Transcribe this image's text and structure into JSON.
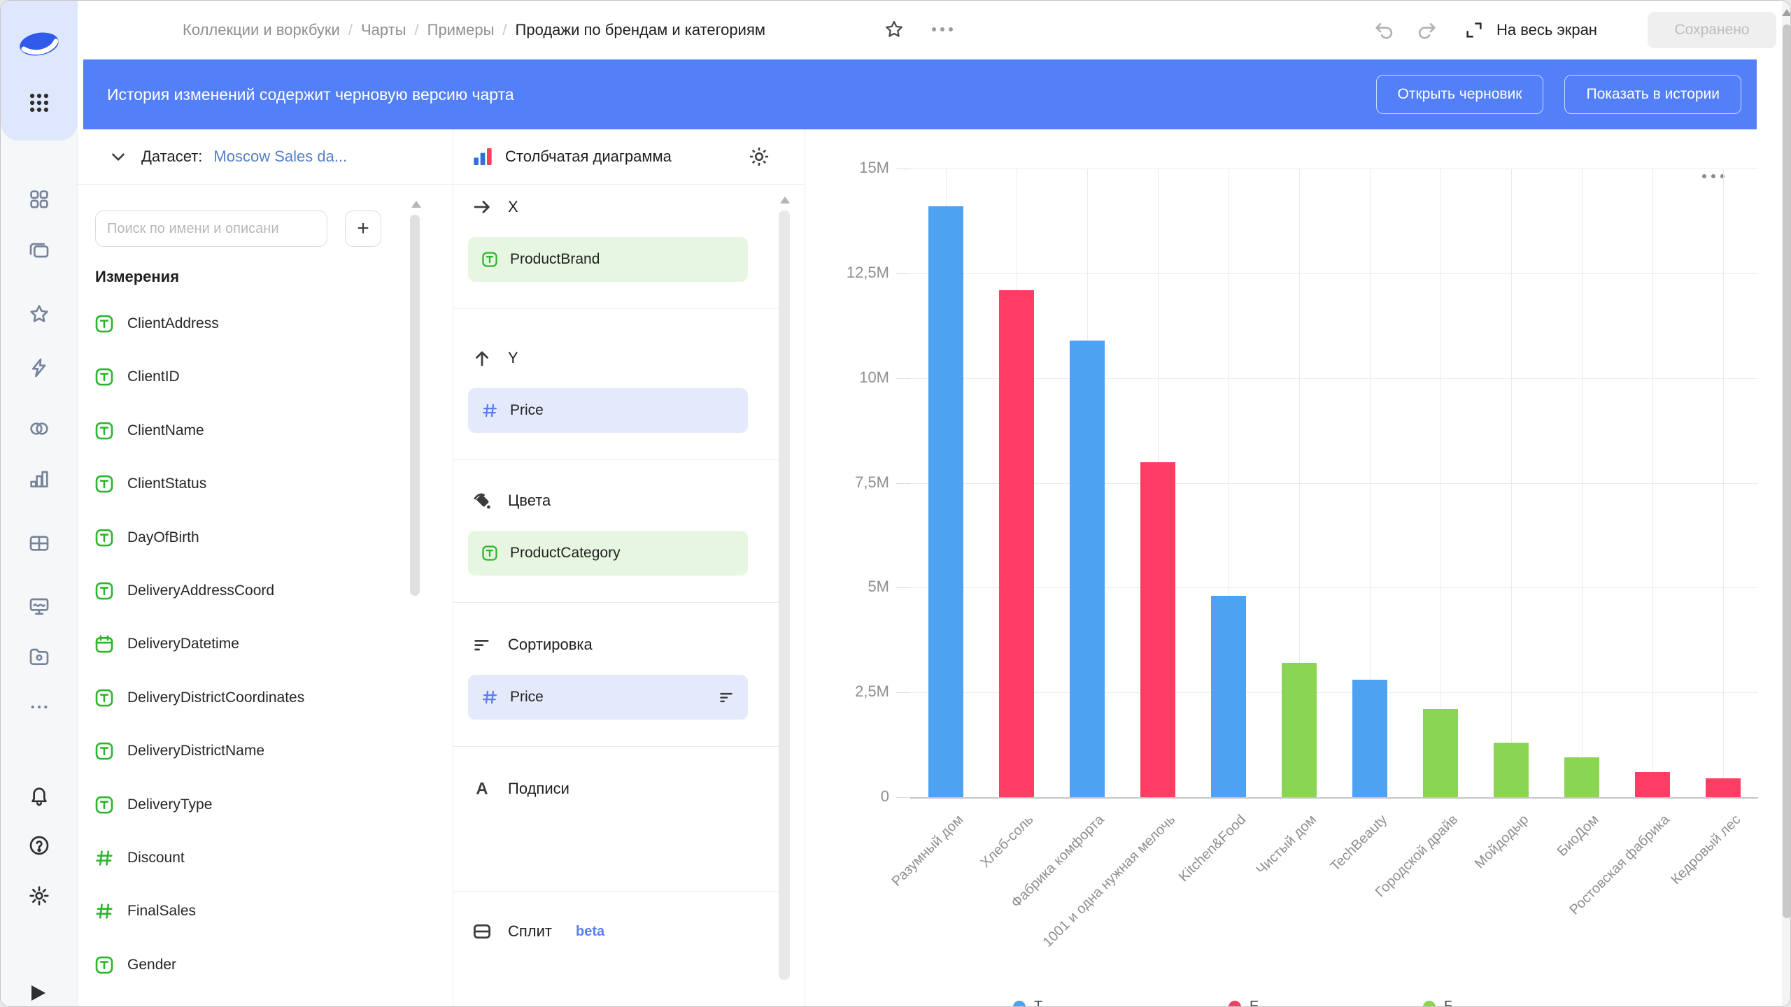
{
  "header": {
    "breadcrumbs": [
      {
        "label": "Коллекции и воркбуки",
        "current": false
      },
      {
        "label": "Чарты",
        "current": false
      },
      {
        "label": "Примеры",
        "current": false
      },
      {
        "label": "Продажи по брендам и категориям",
        "current": true
      }
    ],
    "separator": "/",
    "fullscreen_label": "На весь экран",
    "save_label": "Сохранено"
  },
  "banner": {
    "text": "История изменений содержит черновую версию чарта",
    "open_draft_label": "Открыть черновик",
    "show_history_label": "Показать в истории"
  },
  "sidebar": {
    "items": [
      {
        "icon": "collections-icon"
      },
      {
        "icon": "layers-icon"
      },
      {
        "icon": "star-icon"
      },
      {
        "icon": "lightning-icon"
      },
      {
        "icon": "venn-icon"
      },
      {
        "icon": "bar-chart-icon"
      },
      {
        "icon": "table-icon"
      },
      {
        "icon": "monitor-icon"
      },
      {
        "icon": "folder-icon"
      },
      {
        "icon": "ellipsis-icon"
      },
      {
        "icon": "bell-icon"
      },
      {
        "icon": "help-icon"
      },
      {
        "icon": "gear-icon"
      }
    ]
  },
  "dataset_panel": {
    "label": "Датасет:",
    "dataset_name": "Moscow Sales da...",
    "search_placeholder": "Поиск по имени и описани",
    "add_button_label": "+",
    "section_title": "Измерения",
    "fields": [
      {
        "name": "ClientAddress",
        "type": "text"
      },
      {
        "name": "ClientID",
        "type": "text"
      },
      {
        "name": "ClientName",
        "type": "text"
      },
      {
        "name": "ClientStatus",
        "type": "text"
      },
      {
        "name": "DayOfBirth",
        "type": "text"
      },
      {
        "name": "DeliveryAddressCoord",
        "type": "text"
      },
      {
        "name": "DeliveryDatetime",
        "type": "date"
      },
      {
        "name": "DeliveryDistrictCoordinates",
        "type": "text"
      },
      {
        "name": "DeliveryDistrictName",
        "type": "text"
      },
      {
        "name": "DeliveryType",
        "type": "text"
      },
      {
        "name": "Discount",
        "type": "number"
      },
      {
        "name": "FinalSales",
        "type": "number"
      },
      {
        "name": "Gender",
        "type": "text"
      }
    ]
  },
  "config_panel": {
    "chart_type_label": "Столбчатая диаграмма",
    "sections": [
      {
        "label": "X",
        "icon": "arrow-right-icon",
        "chips": [
          {
            "name": "ProductBrand",
            "type": "text"
          }
        ]
      },
      {
        "label": "Y",
        "icon": "arrow-up-icon",
        "chips": [
          {
            "name": "Price",
            "type": "number"
          }
        ]
      },
      {
        "label": "Цвета",
        "icon": "paint-bucket-icon",
        "chips": [
          {
            "name": "ProductCategory",
            "type": "text"
          }
        ]
      },
      {
        "label": "Сортировка",
        "icon": "sort-icon",
        "chips": [
          {
            "name": "Price",
            "type": "number",
            "sort_glyph": true
          }
        ]
      },
      {
        "label": "Подписи",
        "icon": "label-a-icon",
        "chips": []
      }
    ],
    "split_label": "Сплит",
    "split_badge": "beta"
  },
  "colors": {
    "accent_blue": "#5380f8",
    "bar_blue": "#4DA2F1",
    "bar_red": "#FF3D64",
    "bar_green": "#8AD554",
    "field_icon_green": "#2EB52E",
    "measure_icon_blue": "#587DF5",
    "link_blue": "#5680C8"
  },
  "chart_data": {
    "type": "bar",
    "title": "",
    "xlabel": "",
    "ylabel": "",
    "x_field": "ProductBrand",
    "y_field": "Price",
    "color_field": "ProductCategory",
    "categories": [
      "Разумный дом",
      "Хлеб-соль",
      "Фабрика комфорта",
      "1001 и одна нужная мелочь",
      "Kitchen&Food",
      "Чистый дом",
      "TechBeauty",
      "Городской драйв",
      "Мойдодыр",
      "БиоДом",
      "Ростовская фабрика",
      "Кедровый лес"
    ],
    "values_millions": [
      14.1,
      12.1,
      10.9,
      8.0,
      4.8,
      3.2,
      2.8,
      2.1,
      1.3,
      0.95,
      0.6,
      0.45
    ],
    "bar_colors": [
      "#4DA2F1",
      "#FF3D64",
      "#4DA2F1",
      "#FF3D64",
      "#4DA2F1",
      "#8AD554",
      "#4DA2F1",
      "#8AD554",
      "#8AD554",
      "#8AD554",
      "#FF3D64",
      "#FF3D64"
    ],
    "ylim_millions": [
      0,
      15
    ],
    "ytick_step_millions": 2.5,
    "ytick_labels": [
      "0",
      "2,5M",
      "5M",
      "7,5M",
      "10M",
      "12,5M",
      "15M"
    ],
    "grid": true,
    "legend": {
      "position": "bottom-clipped",
      "items": [
        {
          "visible_fragment": "Т",
          "color": "#4DA2F1"
        },
        {
          "visible_fragment": "Е",
          "color": "#FF3D64"
        },
        {
          "visible_fragment": "Б",
          "color": "#8AD554"
        }
      ]
    }
  }
}
